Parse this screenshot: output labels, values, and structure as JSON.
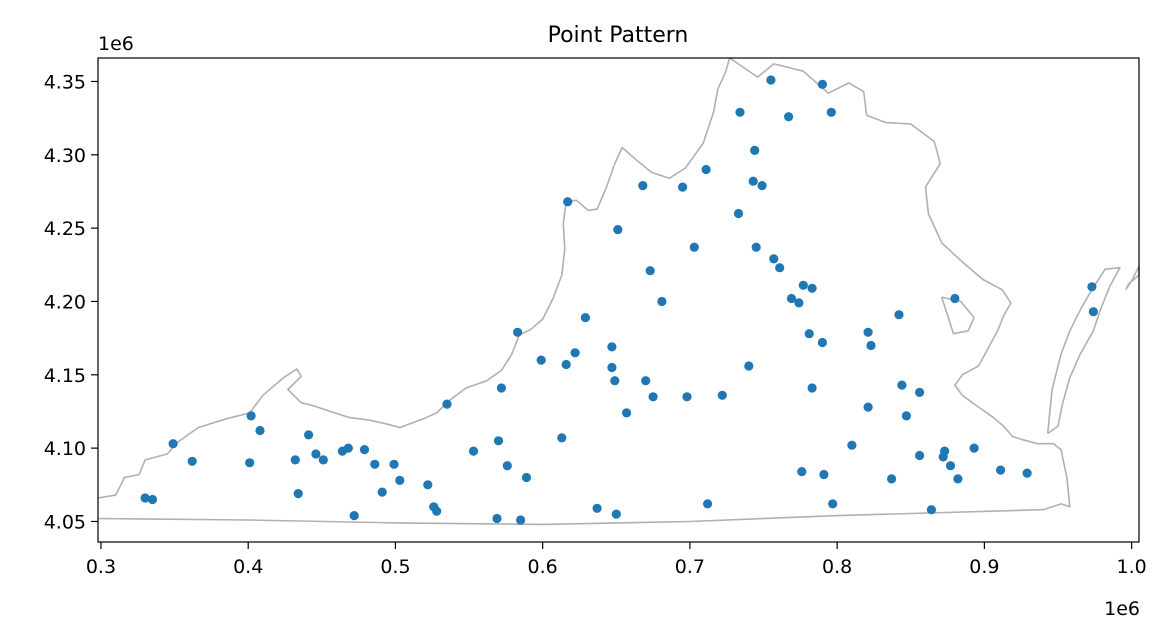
{
  "chart_data": {
    "type": "scatter",
    "title": "Point Pattern",
    "xlabel": "",
    "ylabel": "",
    "x_offset_text": "1e6",
    "y_offset_text": "1e6",
    "xlim": [
      0.298,
      1.005
    ],
    "ylim": [
      4.036,
      4.366
    ],
    "x_ticks": [
      0.3,
      0.4,
      0.5,
      0.6,
      0.7,
      0.8,
      0.9,
      1.0
    ],
    "x_tick_labels": [
      "0.3",
      "0.4",
      "0.5",
      "0.6",
      "0.7",
      "0.8",
      "0.9",
      "1.0"
    ],
    "y_ticks": [
      4.05,
      4.1,
      4.15,
      4.2,
      4.25,
      4.3,
      4.35
    ],
    "y_tick_labels": [
      "4.05",
      "4.10",
      "4.15",
      "4.20",
      "4.25",
      "4.30",
      "4.35"
    ],
    "grid": false,
    "point_color": "#1f77b4",
    "outline_color": "#b0b0b0",
    "points": [
      [
        0.755,
        4.351
      ],
      [
        0.79,
        4.348
      ],
      [
        0.734,
        4.329
      ],
      [
        0.767,
        4.326
      ],
      [
        0.796,
        4.329
      ],
      [
        0.744,
        4.303
      ],
      [
        0.668,
        4.279
      ],
      [
        0.695,
        4.278
      ],
      [
        0.711,
        4.29
      ],
      [
        0.743,
        4.282
      ],
      [
        0.749,
        4.279
      ],
      [
        0.617,
        4.268
      ],
      [
        0.733,
        4.26
      ],
      [
        0.651,
        4.249
      ],
      [
        0.703,
        4.237
      ],
      [
        0.745,
        4.237
      ],
      [
        0.757,
        4.229
      ],
      [
        0.761,
        4.223
      ],
      [
        0.673,
        4.221
      ],
      [
        0.681,
        4.2
      ],
      [
        0.777,
        4.211
      ],
      [
        0.783,
        4.209
      ],
      [
        0.769,
        4.202
      ],
      [
        0.774,
        4.199
      ],
      [
        0.629,
        4.189
      ],
      [
        0.583,
        4.179
      ],
      [
        0.781,
        4.178
      ],
      [
        0.79,
        4.172
      ],
      [
        0.821,
        4.179
      ],
      [
        0.823,
        4.17
      ],
      [
        0.842,
        4.191
      ],
      [
        0.88,
        4.202
      ],
      [
        0.973,
        4.21
      ],
      [
        0.974,
        4.193
      ],
      [
        0.622,
        4.165
      ],
      [
        0.647,
        4.169
      ],
      [
        0.599,
        4.16
      ],
      [
        0.616,
        4.157
      ],
      [
        0.647,
        4.155
      ],
      [
        0.649,
        4.146
      ],
      [
        0.572,
        4.141
      ],
      [
        0.67,
        4.146
      ],
      [
        0.675,
        4.135
      ],
      [
        0.698,
        4.135
      ],
      [
        0.722,
        4.136
      ],
      [
        0.74,
        4.156
      ],
      [
        0.783,
        4.141
      ],
      [
        0.844,
        4.143
      ],
      [
        0.856,
        4.138
      ],
      [
        0.535,
        4.13
      ],
      [
        0.657,
        4.124
      ],
      [
        0.821,
        4.128
      ],
      [
        0.847,
        4.122
      ],
      [
        0.402,
        4.122
      ],
      [
        0.408,
        4.112
      ],
      [
        0.441,
        4.109
      ],
      [
        0.349,
        4.103
      ],
      [
        0.362,
        4.091
      ],
      [
        0.401,
        4.09
      ],
      [
        0.432,
        4.092
      ],
      [
        0.446,
        4.096
      ],
      [
        0.451,
        4.092
      ],
      [
        0.464,
        4.098
      ],
      [
        0.468,
        4.1
      ],
      [
        0.479,
        4.099
      ],
      [
        0.486,
        4.089
      ],
      [
        0.499,
        4.089
      ],
      [
        0.57,
        4.105
      ],
      [
        0.613,
        4.107
      ],
      [
        0.553,
        4.098
      ],
      [
        0.576,
        4.088
      ],
      [
        0.589,
        4.08
      ],
      [
        0.81,
        4.102
      ],
      [
        0.856,
        4.095
      ],
      [
        0.872,
        4.094
      ],
      [
        0.873,
        4.098
      ],
      [
        0.877,
        4.088
      ],
      [
        0.893,
        4.1
      ],
      [
        0.776,
        4.084
      ],
      [
        0.791,
        4.082
      ],
      [
        0.911,
        4.085
      ],
      [
        0.929,
        4.083
      ],
      [
        0.837,
        4.079
      ],
      [
        0.882,
        4.079
      ],
      [
        0.33,
        4.066
      ],
      [
        0.335,
        4.065
      ],
      [
        0.434,
        4.069
      ],
      [
        0.491,
        4.07
      ],
      [
        0.503,
        4.078
      ],
      [
        0.522,
        4.075
      ],
      [
        0.526,
        4.06
      ],
      [
        0.528,
        4.057
      ],
      [
        0.472,
        4.054
      ],
      [
        0.569,
        4.052
      ],
      [
        0.585,
        4.051
      ],
      [
        0.637,
        4.059
      ],
      [
        0.65,
        4.055
      ],
      [
        0.712,
        4.062
      ],
      [
        0.797,
        4.062
      ],
      [
        0.864,
        4.058
      ]
    ],
    "outlines": [
      [
        [
          0.298,
          4.066
        ],
        [
          0.31,
          4.068
        ],
        [
          0.316,
          4.08
        ],
        [
          0.326,
          4.082
        ],
        [
          0.33,
          4.092
        ],
        [
          0.345,
          4.096
        ],
        [
          0.352,
          4.104
        ],
        [
          0.366,
          4.114
        ],
        [
          0.385,
          4.12
        ],
        [
          0.401,
          4.124
        ],
        [
          0.41,
          4.136
        ],
        [
          0.424,
          4.148
        ],
        [
          0.433,
          4.154
        ],
        [
          0.436,
          4.149
        ],
        [
          0.427,
          4.14
        ],
        [
          0.436,
          4.131
        ],
        [
          0.444,
          4.129
        ],
        [
          0.456,
          4.125
        ],
        [
          0.468,
          4.121
        ],
        [
          0.483,
          4.119
        ],
        [
          0.496,
          4.116
        ],
        [
          0.503,
          4.114
        ],
        [
          0.519,
          4.12
        ],
        [
          0.528,
          4.124
        ],
        [
          0.536,
          4.132
        ],
        [
          0.548,
          4.141
        ],
        [
          0.562,
          4.146
        ],
        [
          0.572,
          4.153
        ],
        [
          0.579,
          4.164
        ],
        [
          0.584,
          4.177
        ],
        [
          0.592,
          4.181
        ],
        [
          0.6,
          4.188
        ],
        [
          0.607,
          4.202
        ],
        [
          0.613,
          4.218
        ],
        [
          0.615,
          4.236
        ],
        [
          0.614,
          4.253
        ],
        [
          0.616,
          4.268
        ],
        [
          0.623,
          4.269
        ],
        [
          0.631,
          4.262
        ],
        [
          0.637,
          4.263
        ],
        [
          0.643,
          4.277
        ],
        [
          0.649,
          4.294
        ],
        [
          0.654,
          4.305
        ],
        [
          0.663,
          4.297
        ],
        [
          0.674,
          4.288
        ],
        [
          0.686,
          4.284
        ],
        [
          0.697,
          4.291
        ],
        [
          0.709,
          4.308
        ],
        [
          0.716,
          4.329
        ],
        [
          0.719,
          4.345
        ],
        [
          0.724,
          4.356
        ],
        [
          0.727,
          4.366
        ],
        [
          0.746,
          4.353
        ],
        [
          0.757,
          4.362
        ],
        [
          0.777,
          4.357
        ],
        [
          0.794,
          4.342
        ],
        [
          0.808,
          4.349
        ],
        [
          0.818,
          4.343
        ],
        [
          0.82,
          4.327
        ],
        [
          0.833,
          4.322
        ],
        [
          0.85,
          4.321
        ],
        [
          0.866,
          4.309
        ],
        [
          0.87,
          4.294
        ],
        [
          0.86,
          4.278
        ],
        [
          0.862,
          4.26
        ],
        [
          0.871,
          4.24
        ],
        [
          0.885,
          4.227
        ],
        [
          0.899,
          4.215
        ],
        [
          0.912,
          4.208
        ],
        [
          0.918,
          4.199
        ],
        [
          0.913,
          4.19
        ],
        [
          0.909,
          4.18
        ],
        [
          0.902,
          4.167
        ],
        [
          0.896,
          4.156
        ],
        [
          0.885,
          4.15
        ],
        [
          0.88,
          4.143
        ],
        [
          0.885,
          4.136
        ],
        [
          0.896,
          4.128
        ],
        [
          0.906,
          4.121
        ],
        [
          0.913,
          4.115
        ],
        [
          0.919,
          4.108
        ],
        [
          0.925,
          4.106
        ],
        [
          0.936,
          4.103
        ],
        [
          0.947,
          4.103
        ],
        [
          0.952,
          4.099
        ],
        [
          0.956,
          4.08
        ],
        [
          0.958,
          4.06
        ],
        [
          0.952,
          4.062
        ],
        [
          0.94,
          4.058
        ],
        [
          0.8,
          4.054
        ],
        [
          0.7,
          4.05
        ],
        [
          0.6,
          4.048
        ],
        [
          0.5,
          4.049
        ],
        [
          0.4,
          4.051
        ],
        [
          0.298,
          4.052
        ]
      ],
      [
        [
          0.943,
          4.11
        ],
        [
          0.946,
          4.14
        ],
        [
          0.952,
          4.164
        ],
        [
          0.958,
          4.18
        ],
        [
          0.966,
          4.196
        ],
        [
          0.973,
          4.208
        ],
        [
          0.982,
          4.222
        ],
        [
          0.992,
          4.223
        ],
        [
          0.985,
          4.21
        ],
        [
          0.979,
          4.195
        ],
        [
          0.974,
          4.18
        ],
        [
          0.965,
          4.164
        ],
        [
          0.958,
          4.148
        ],
        [
          0.953,
          4.13
        ],
        [
          0.95,
          4.115
        ],
        [
          0.943,
          4.11
        ]
      ],
      [
        [
          0.996,
          4.208
        ],
        [
          1.0,
          4.214
        ],
        [
          1.005,
          4.224
        ],
        [
          1.005,
          4.218
        ],
        [
          0.998,
          4.212
        ],
        [
          0.996,
          4.208
        ]
      ],
      [
        [
          0.871,
          4.203
        ],
        [
          0.884,
          4.2
        ],
        [
          0.893,
          4.189
        ],
        [
          0.889,
          4.18
        ],
        [
          0.879,
          4.178
        ],
        [
          0.871,
          4.203
        ]
      ]
    ]
  }
}
